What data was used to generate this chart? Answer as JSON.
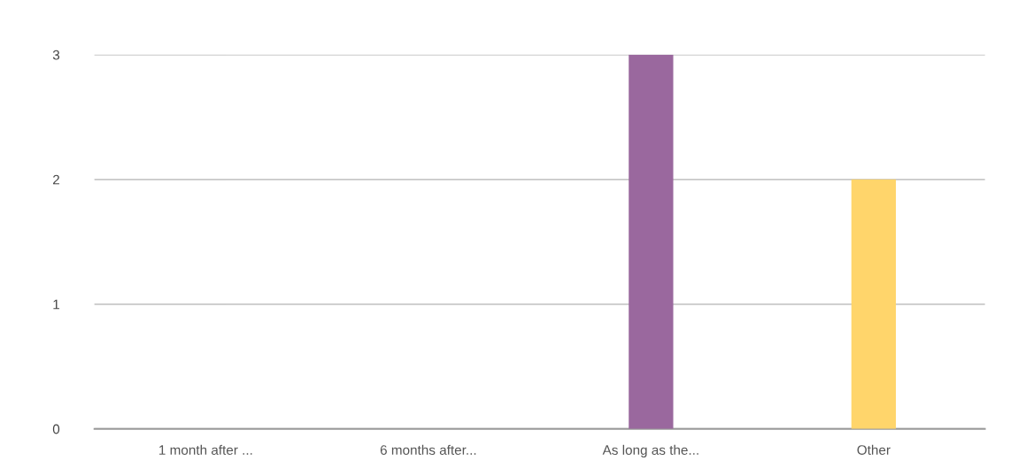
{
  "chart_data": {
    "type": "bar",
    "categories": [
      "1 month after ...",
      "6 months after...",
      "As long as the...",
      "Other"
    ],
    "values": [
      0,
      0,
      3,
      2
    ],
    "colors": [
      null,
      null,
      "#9a689e",
      "#ffd56b"
    ],
    "ylim": [
      0,
      3
    ],
    "yticks": [
      0,
      1,
      2,
      3
    ],
    "grid": "y",
    "legend": false
  }
}
